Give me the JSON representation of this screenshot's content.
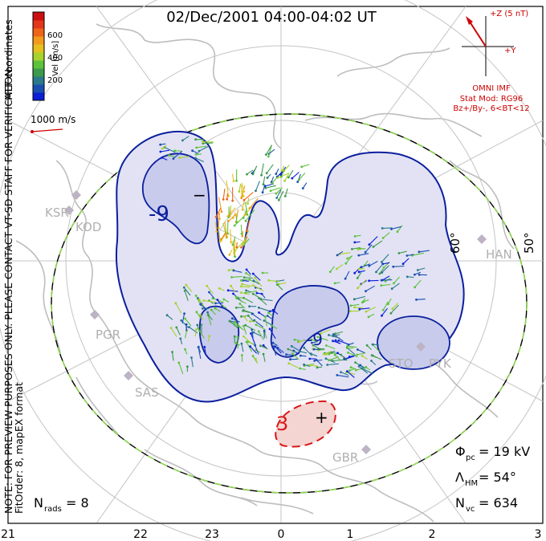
{
  "title": "02/Dec/2001 04:00-04:02 UT",
  "side_note": {
    "line1": "NOTE: FOR PREVIEW PURPOSES ONLY. PLEASE CONTACT VT-SD STAFF FOR VERIFICATION.",
    "line2": "FitOrder: 8, mapEX format"
  },
  "coordinates_label": "MLT coordinates",
  "colorbar": {
    "label": "Vel [m/s]",
    "ticks": [
      "600",
      "400",
      "200"
    ],
    "colors": [
      "#0b1fd6",
      "#1a4fb0",
      "#2a7a8a",
      "#3c9a4a",
      "#5cc23a",
      "#a8d22c",
      "#e6c01e",
      "#f29a1c",
      "#ef6418",
      "#e3361a",
      "#cc1010"
    ]
  },
  "scale_vector": {
    "label": "1000 m/s",
    "color": "#cc0000"
  },
  "imf": {
    "z_label": "+Z (5 nT)",
    "y_label": "+Y",
    "source": "OMNI IMF",
    "model": "Stat Mod: RG96",
    "condition": "Bz+/By-, 6<BT<12",
    "color": "#cc0000"
  },
  "stations": [
    "KSR",
    "KOD",
    "PGR",
    "SAS",
    "STO",
    "PYK",
    "GBR",
    "HAN"
  ],
  "lat_labels": [
    "60°",
    "50°"
  ],
  "contours": {
    "negative_label": "-9",
    "negative_label2": "-9",
    "positive_label": "3",
    "min_marker": "−",
    "max_marker": "+",
    "negative_color": "#0b1f9e",
    "positive_color": "#d81818"
  },
  "stats": {
    "phi_label": "Φ",
    "phi_sub": "pc",
    "phi_value": "= 19 kV",
    "lambda_label": "Λ",
    "lambda_sub": "HM",
    "lambda_value": "= 54°",
    "nvc_label": "N",
    "nvc_sub": "vc",
    "nvc_value": "= 634",
    "nrads_label": "N",
    "nrads_sub": "rads",
    "nrads_value": "= 8"
  },
  "mlt_axis": [
    "21",
    "22",
    "23",
    "0",
    "1",
    "2",
    "3"
  ]
}
